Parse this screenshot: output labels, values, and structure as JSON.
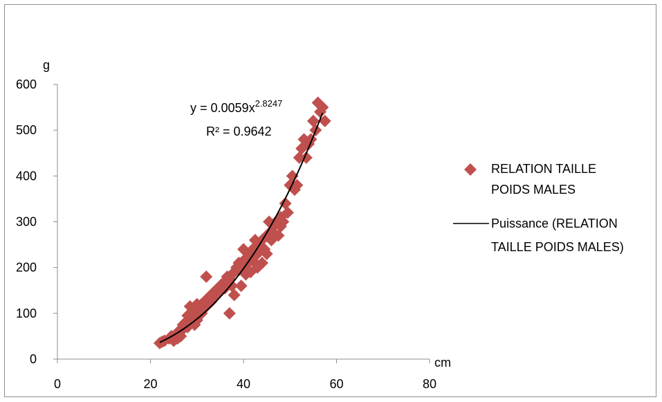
{
  "chart_data": {
    "type": "scatter",
    "xlabel": "cm",
    "ylabel": "g",
    "xlim": [
      0,
      80
    ],
    "ylim": [
      0,
      600
    ],
    "xticks": [
      0,
      20,
      40,
      60,
      80
    ],
    "yticks": [
      0,
      100,
      200,
      300,
      400,
      500,
      600
    ],
    "grid": false,
    "legend_position": "right",
    "series": [
      {
        "name": "RELATION TAILLE POIDS MALES",
        "marker": "diamond",
        "color": "#c0504d",
        "x": [
          22.0,
          22.5,
          23.0,
          24.0,
          24.5,
          25.0,
          25.5,
          25.8,
          26.0,
          26.5,
          27.0,
          27.0,
          27.5,
          28.0,
          28.0,
          28.5,
          28.5,
          29.0,
          29.5,
          29.5,
          30.0,
          30.0,
          30.5,
          31.0,
          31.0,
          31.5,
          32.0,
          32.0,
          32.5,
          33.0,
          33.0,
          33.5,
          34.0,
          34.0,
          34.5,
          35.0,
          35.0,
          35.5,
          36.0,
          36.0,
          36.5,
          37.0,
          37.0,
          37.5,
          37.5,
          38.0,
          38.0,
          38.5,
          39.0,
          39.0,
          39.5,
          40.0,
          40.0,
          40.5,
          40.5,
          41.0,
          41.0,
          41.5,
          42.0,
          42.0,
          42.5,
          43.0,
          43.0,
          43.5,
          44.0,
          44.0,
          44.5,
          45.0,
          45.0,
          45.5,
          46.0,
          46.0,
          46.5,
          47.0,
          47.5,
          48.0,
          48.0,
          48.5,
          49.0,
          49.5,
          50.0,
          50.5,
          51.0,
          51.5,
          52.0,
          52.5,
          53.0,
          53.5,
          54.0,
          54.5,
          55.0,
          55.5,
          56.0,
          56.5,
          57.0,
          57.5
        ],
        "y": [
          35,
          38,
          40,
          45,
          50,
          40,
          55,
          45,
          60,
          50,
          65,
          75,
          80,
          70,
          95,
          90,
          115,
          100,
          75,
          110,
          120,
          85,
          115,
          100,
          120,
          110,
          180,
          130,
          120,
          140,
          125,
          145,
          150,
          140,
          155,
          160,
          150,
          165,
          170,
          155,
          180,
          175,
          100,
          160,
          185,
          190,
          140,
          200,
          195,
          210,
          160,
          240,
          200,
          220,
          185,
          230,
          210,
          190,
          240,
          215,
          260,
          230,
          200,
          250,
          260,
          210,
          240,
          270,
          230,
          300,
          280,
          260,
          290,
          300,
          270,
          310,
          290,
          300,
          340,
          320,
          380,
          400,
          370,
          380,
          440,
          460,
          480,
          440,
          470,
          480,
          520,
          500,
          560,
          540,
          550,
          520
        ]
      },
      {
        "name": "Puissance (RELATION TAILLE POIDS MALES)",
        "type": "trendline",
        "color": "#000000",
        "model": "power",
        "coefficient": 0.0059,
        "exponent": 2.8247,
        "x_range": [
          22,
          57
        ]
      }
    ],
    "annotations": {
      "equation_prefix": "y = 0.0059x",
      "equation_exponent": "2.8247",
      "r_squared": "R² = 0.9642"
    }
  }
}
